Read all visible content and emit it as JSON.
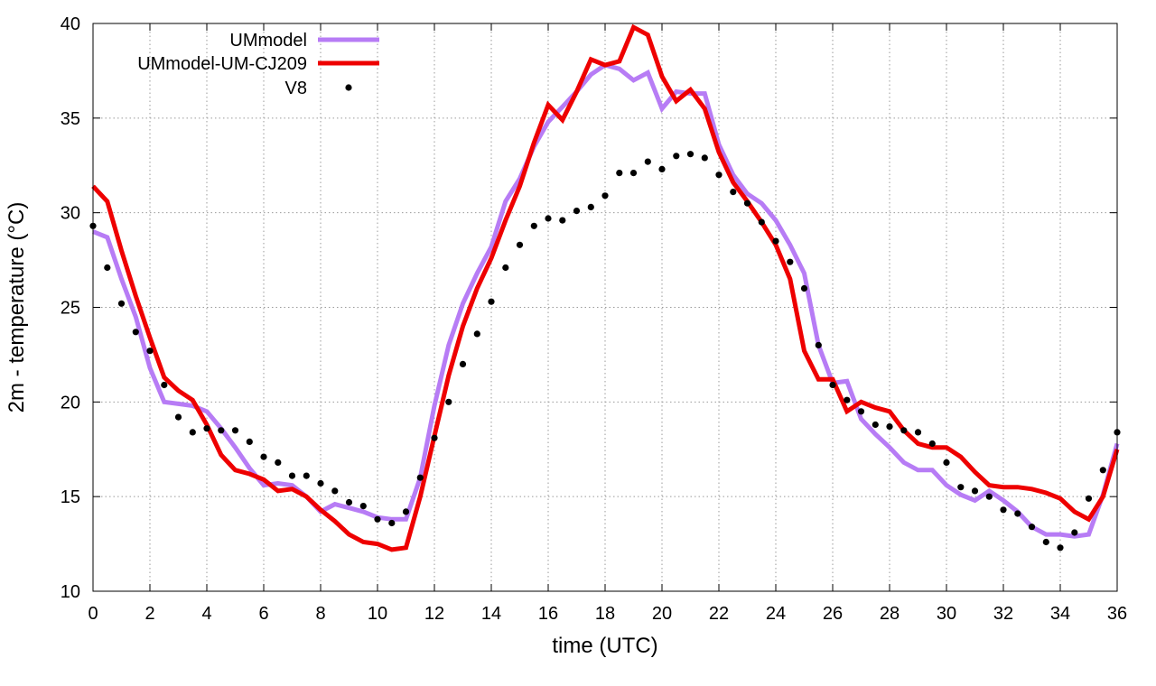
{
  "chart_data": {
    "type": "line",
    "title": "",
    "xlabel": "time (UTC)",
    "ylabel": "2m - temperature (°C)",
    "xlim": [
      0,
      36
    ],
    "ylim": [
      10,
      40
    ],
    "xticks": [
      0,
      2,
      4,
      6,
      8,
      10,
      12,
      14,
      16,
      18,
      20,
      22,
      24,
      26,
      28,
      30,
      32,
      34,
      36
    ],
    "yticks": [
      10,
      15,
      20,
      25,
      30,
      35,
      40
    ],
    "grid": true,
    "legend_position": "top-left",
    "series": [
      {
        "name": "UMmodel",
        "style": "line",
        "color": "#b77cf5",
        "x": [
          0,
          0.5,
          1,
          1.5,
          2,
          2.5,
          3,
          3.5,
          4,
          4.5,
          5,
          5.5,
          6,
          6.5,
          7,
          7.5,
          8,
          8.5,
          9,
          9.5,
          10,
          10.5,
          11,
          11.5,
          12,
          12.5,
          13,
          13.5,
          14,
          14.5,
          15,
          15.5,
          16,
          16.5,
          17,
          17.5,
          18,
          18.5,
          19,
          19.5,
          20,
          20.5,
          21,
          21.5,
          22,
          22.5,
          23,
          23.5,
          24,
          24.5,
          25,
          25.5,
          26,
          26.5,
          27,
          27.5,
          28,
          28.5,
          29,
          29.5,
          30,
          30.5,
          31,
          31.5,
          32,
          32.5,
          33,
          33.5,
          34,
          34.5,
          35,
          35.5,
          36
        ],
        "y": [
          29.0,
          28.7,
          26.5,
          24.5,
          21.8,
          20.0,
          19.9,
          19.8,
          19.5,
          18.6,
          17.6,
          16.5,
          15.6,
          15.7,
          15.6,
          15.0,
          14.2,
          14.6,
          14.4,
          14.2,
          13.9,
          13.8,
          13.8,
          16.0,
          19.8,
          23.0,
          25.2,
          26.8,
          28.2,
          30.6,
          31.8,
          33.5,
          34.8,
          35.6,
          36.4,
          37.3,
          37.8,
          37.6,
          37.0,
          37.4,
          35.5,
          36.4,
          36.3,
          36.3,
          33.6,
          32.0,
          31.0,
          30.5,
          29.6,
          28.3,
          26.8,
          23.0,
          21.0,
          21.1,
          19.1,
          18.3,
          17.6,
          16.8,
          16.4,
          16.4,
          15.6,
          15.1,
          14.8,
          15.3,
          14.8,
          14.2,
          13.4,
          13.0,
          13.0,
          12.9,
          13.0,
          15.1,
          17.8
        ]
      },
      {
        "name": "UMmodel-UM-CJ209",
        "style": "line",
        "color": "#ee0000",
        "x": [
          0,
          0.5,
          1,
          1.5,
          2,
          2.5,
          3,
          3.5,
          4,
          4.5,
          5,
          5.5,
          6,
          6.5,
          7,
          7.5,
          8,
          8.5,
          9,
          9.5,
          10,
          10.5,
          11,
          11.5,
          12,
          12.5,
          13,
          13.5,
          14,
          14.5,
          15,
          15.5,
          16,
          16.5,
          17,
          17.5,
          18,
          18.5,
          19,
          19.5,
          20,
          20.5,
          21,
          21.5,
          22,
          22.5,
          23,
          23.5,
          24,
          24.5,
          25,
          25.5,
          26,
          26.5,
          27,
          27.5,
          28,
          28.5,
          29,
          29.5,
          30,
          30.5,
          31,
          31.5,
          32,
          32.5,
          33,
          33.5,
          34,
          34.5,
          35,
          35.5,
          36
        ],
        "y": [
          31.4,
          30.6,
          28.0,
          25.6,
          23.4,
          21.3,
          20.6,
          20.1,
          18.8,
          17.2,
          16.4,
          16.2,
          15.9,
          15.3,
          15.4,
          15.0,
          14.3,
          13.7,
          13.0,
          12.6,
          12.5,
          12.2,
          12.3,
          15.0,
          18.2,
          21.4,
          24.0,
          26.0,
          27.6,
          29.6,
          31.4,
          33.7,
          35.7,
          34.9,
          36.4,
          38.1,
          37.8,
          38.0,
          39.8,
          39.4,
          37.2,
          35.9,
          36.5,
          35.5,
          33.2,
          31.6,
          30.6,
          29.5,
          28.3,
          26.5,
          22.7,
          21.2,
          21.2,
          19.5,
          20.0,
          19.7,
          19.5,
          18.5,
          17.8,
          17.6,
          17.6,
          17.1,
          16.3,
          15.6,
          15.5,
          15.5,
          15.4,
          15.2,
          14.9,
          14.2,
          13.8,
          15.0,
          17.5
        ]
      },
      {
        "name": "V8",
        "style": "points",
        "color": "#000000",
        "x": [
          0,
          0.5,
          1,
          1.5,
          2,
          2.5,
          3,
          3.5,
          4,
          4.5,
          5,
          5.5,
          6,
          6.5,
          7,
          7.5,
          8,
          8.5,
          9,
          9.5,
          10,
          10.5,
          11,
          11.5,
          12,
          12.5,
          13,
          13.5,
          14,
          14.5,
          15,
          15.5,
          16,
          16.5,
          17,
          17.5,
          18,
          18.5,
          19,
          19.5,
          20,
          20.5,
          21,
          21.5,
          22,
          22.5,
          23,
          23.5,
          24,
          24.5,
          25,
          25.5,
          26,
          26.5,
          27,
          27.5,
          28,
          28.5,
          29,
          29.5,
          30,
          30.5,
          31,
          31.5,
          32,
          32.5,
          33,
          33.5,
          34,
          34.5,
          35,
          35.5,
          36
        ],
        "y": [
          29.3,
          27.1,
          25.2,
          23.7,
          22.7,
          20.9,
          19.2,
          18.4,
          18.6,
          18.5,
          18.5,
          17.9,
          17.1,
          16.8,
          16.1,
          16.1,
          15.7,
          15.3,
          14.7,
          14.5,
          13.8,
          13.6,
          14.2,
          16.0,
          18.1,
          20.0,
          22.0,
          23.6,
          25.3,
          27.1,
          28.3,
          29.3,
          29.7,
          29.6,
          30.1,
          30.3,
          30.9,
          32.1,
          32.1,
          32.7,
          32.3,
          33.0,
          33.1,
          32.9,
          32.0,
          31.1,
          30.5,
          29.5,
          28.5,
          27.4,
          26.0,
          23.0,
          20.9,
          20.1,
          19.5,
          18.8,
          18.7,
          18.5,
          18.4,
          17.8,
          16.8,
          15.5,
          15.3,
          15.0,
          14.3,
          14.1,
          13.4,
          12.6,
          12.3,
          13.1,
          14.9,
          16.4,
          18.4
        ]
      }
    ]
  }
}
